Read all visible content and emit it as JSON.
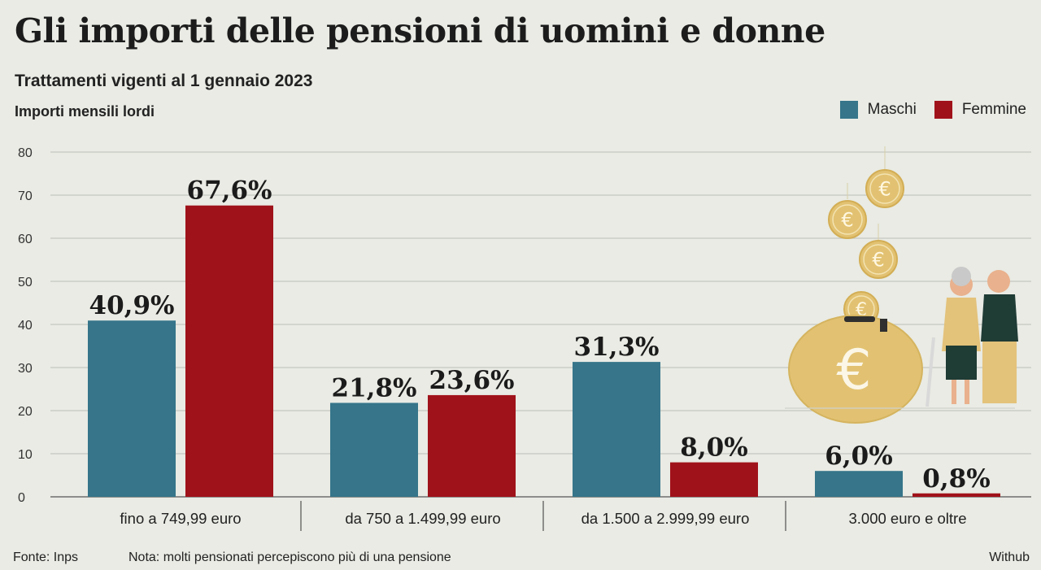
{
  "header": {
    "title": "Gli importi delle pensioni di uomini e donne",
    "subtitle": "Trattamenti vigenti al 1 gennaio 2023",
    "unit_label": "Importi mensili lordi"
  },
  "legend": {
    "items": [
      {
        "label": "Maschi",
        "color": "#36758a"
      },
      {
        "label": "Femmine",
        "color": "#a0121a"
      }
    ]
  },
  "chart_data": {
    "type": "bar",
    "title": "Gli importi delle pensioni di uomini e donne",
    "subtitle": "Trattamenti vigenti al 1 gennaio 2023",
    "ylabel": "Importi mensili lordi",
    "xlabel": "",
    "categories": [
      "fino a 749,99 euro",
      "da 750 a 1.499,99 euro",
      "da 1.500 a 2.999,99 euro",
      "3.000 euro e oltre"
    ],
    "series": [
      {
        "name": "Maschi",
        "values": [
          40.9,
          21.8,
          31.3,
          6.0
        ],
        "labels": [
          "40,9%",
          "21,8%",
          "31,3%",
          "6,0%"
        ],
        "color": "#36758a"
      },
      {
        "name": "Femmine",
        "values": [
          67.6,
          23.6,
          8.0,
          0.8
        ],
        "labels": [
          "67,6%",
          "23,6%",
          "8,0%",
          "0,8%"
        ],
        "color": "#a0121a"
      }
    ],
    "ylim": [
      0,
      80
    ],
    "yticks": [
      "0",
      "10",
      "20",
      "30",
      "40",
      "50",
      "60",
      "70",
      "80"
    ],
    "grid": true,
    "legend_position": "top-right"
  },
  "illustration": {
    "icon": "piggy-bank-euro-coins-elderly-couple",
    "euro_symbol": "€"
  },
  "footer": {
    "source": "Fonte: Inps",
    "note": "Nota: molti pensionati percepiscono più di una pensione",
    "brand": "Withub"
  }
}
